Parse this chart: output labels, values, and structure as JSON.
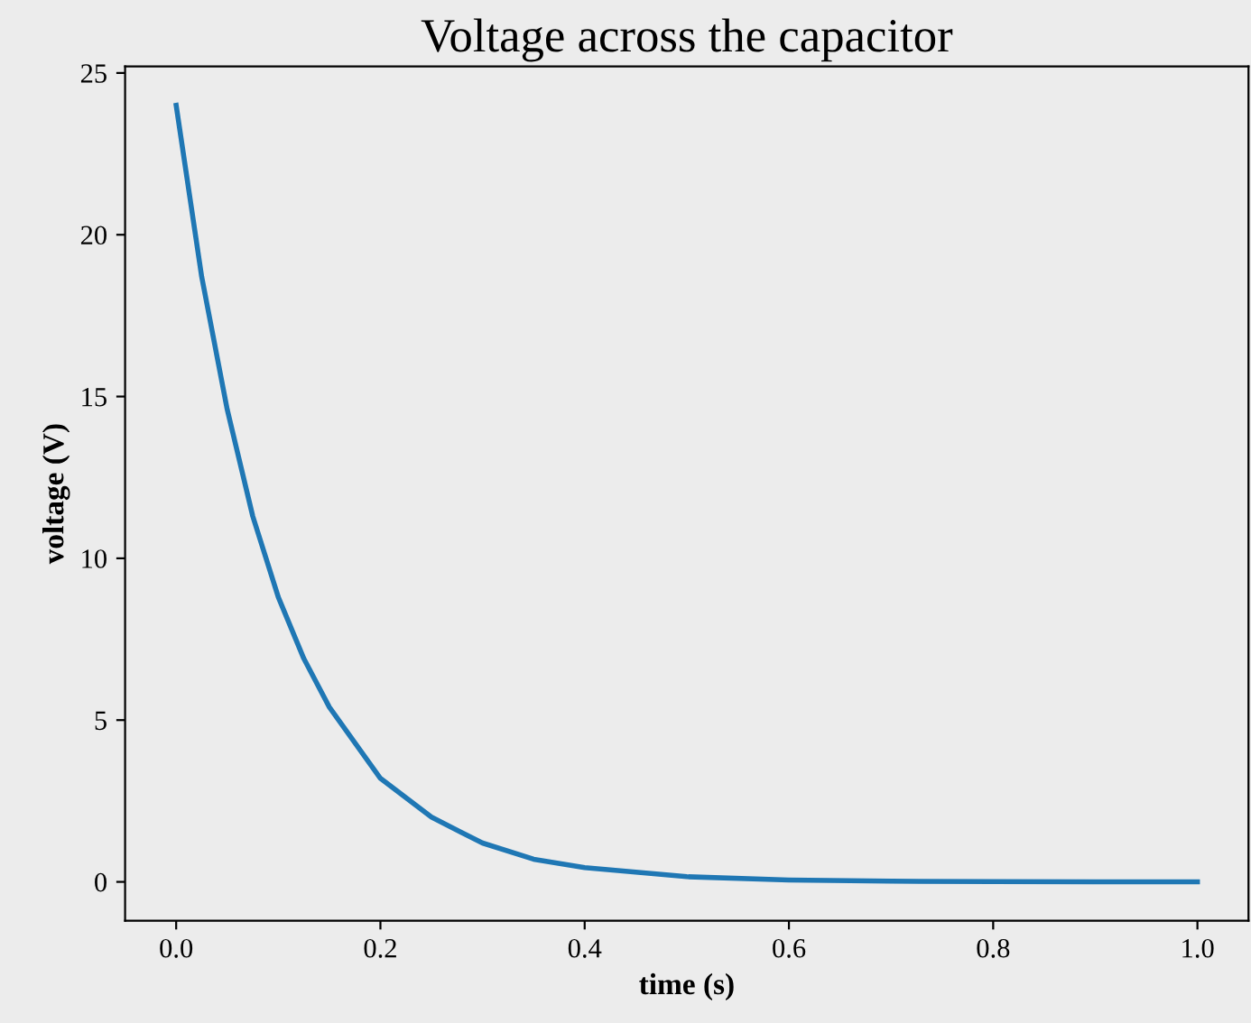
{
  "chart_data": {
    "type": "line",
    "title": "Voltage across the capacitor",
    "xlabel": "time (s)",
    "ylabel": "voltage (V)",
    "x": [
      0,
      0.025,
      0.05,
      0.075,
      0.1,
      0.125,
      0.15,
      0.2,
      0.25,
      0.3,
      0.35,
      0.4,
      0.5,
      0.6,
      0.7,
      0.8,
      0.9,
      1.0
    ],
    "series": [
      {
        "color": "#1f77b4",
        "values": [
          24,
          18.7,
          14.6,
          11.3,
          8.8,
          6.9,
          5.4,
          3.2,
          2.0,
          1.2,
          0.7,
          0.44,
          0.16,
          0.06,
          0.02,
          0.01,
          0,
          0
        ]
      }
    ],
    "xlim": [
      -0.05,
      1.05
    ],
    "ylim": [
      -1.2,
      25.2
    ],
    "xticks": [
      {
        "value": 0,
        "label": "0.0"
      },
      {
        "value": 0.2,
        "label": "0.2"
      },
      {
        "value": 0.4,
        "label": "0.4"
      },
      {
        "value": 0.6,
        "label": "0.6"
      },
      {
        "value": 0.8,
        "label": "0.8"
      },
      {
        "value": 1.0,
        "label": "1.0"
      }
    ],
    "yticks": [
      0,
      5,
      10,
      15,
      20,
      25
    ],
    "grid": false,
    "legend": false
  }
}
